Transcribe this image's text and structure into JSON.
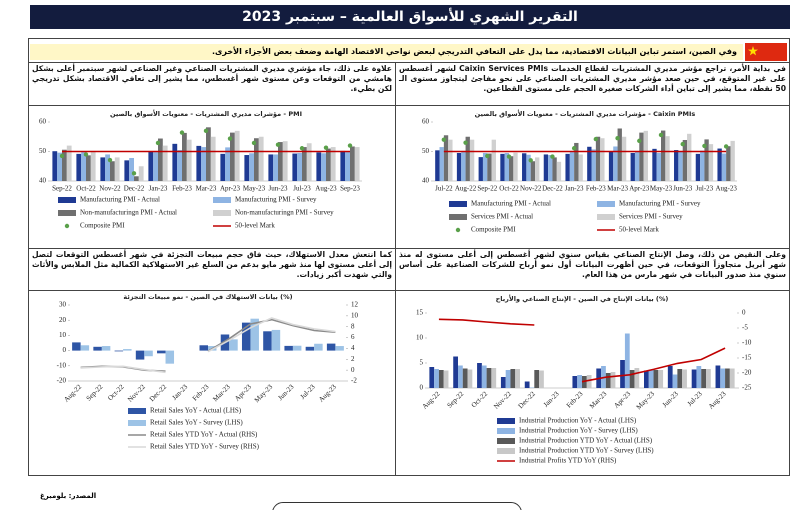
{
  "header": {
    "title": "التقرير الشهري للأسواق العالمية – سبتمبر 2023"
  },
  "intro": "وفي الصين، استمر تباين البيانات الاقتصادية، مما يدل على التعافي التدريجي لبعض نواحي الاقتصاد الهامة وضعف بعض الأجزاء الأخرى.",
  "paragraphs": [
    "في بداية الأمر، تراجع مؤشر مديري المشتريات لقطاع الخدمات Caixin Services PMIs لشهر أغسطس على غير المتوقع، في حين صعد مؤشر مديري المشتريات الصناعي على نحو مفاجئ ليتجاوز مستوى الـ 50 نقطة، مما يشير إلى تباين أداء الشركات صغيرة الحجم على مستوى القطاعين.",
    "علاوة على ذلك، جاء مؤشري مديري المشتريات الصناعي وغير الصناعي لشهر سبتمبر أعلى بشكل هامشي من التوقعات وعن مستوى شهر أغسطس، مما يشير إلى تعافي الاقتصاد بشكل تدريجي لكن بطيء.",
    "وعلى النقيض من ذلك، وصل الإنتاج الصناعي بقياس سنوي لشهر أغسطس إلى أعلى مستوى له منذ شهر أبريل متجاوزاً التوقعات، في حين أظهرت البيانات أول نمو أرباح للشركات الصناعية على أساس سنوي منذ صدور البيانات في شهر مارس من هذا العام.",
    "كما انتعش معدل الاستهلاك، حيث فاق حجم مبيعات التجزئة في شهر أغسطس التوقعات لتصل إلى أعلى مستوى لها منذ شهر مايو بدعم من السلع غير الاستهلاكية الكمالية مثل الملابس والأثاث والتي شهدت أكبر زيادات."
  ],
  "source": "المصدر: بلومبرغ",
  "chart_data": [
    {
      "type": "bar",
      "title": "مؤشرات مديري المشتريات - معنويات الأسواق بالصين - Caixin PMIs",
      "categories": [
        "Jul-22",
        "Aug-22",
        "Sep-22",
        "Oct-22",
        "Nov-22",
        "Dec-22",
        "Jan-23",
        "Feb-23",
        "Mar-23",
        "Apr-23",
        "May-23",
        "Jun-23",
        "Jul-23",
        "Aug-23"
      ],
      "ylim": [
        40,
        60
      ],
      "yticks": [
        40,
        50,
        60
      ],
      "grid": false,
      "series": [
        {
          "name": "Manufacturing PMI - Actual",
          "type": "bar",
          "color": "#1f3a93",
          "values": [
            50.4,
            49.5,
            48.1,
            49.2,
            49.4,
            49.0,
            49.2,
            51.6,
            50.0,
            49.5,
            50.9,
            50.5,
            49.2,
            51.0
          ]
        },
        {
          "name": "Manufacturing PMI - Survey",
          "type": "bar",
          "color": "#8eb4e3",
          "values": [
            51.5,
            50.2,
            49.5,
            49.5,
            48.9,
            48.8,
            49.8,
            50.7,
            51.7,
            50.0,
            49.5,
            50.0,
            50.3,
            49.3
          ]
        },
        {
          "name": "Services PMI - Actual",
          "type": "bar",
          "color": "#6f6f6f",
          "values": [
            55.5,
            55.0,
            49.3,
            48.4,
            46.7,
            48.0,
            52.9,
            55.0,
            57.8,
            56.4,
            57.1,
            53.9,
            54.1,
            51.8
          ]
        },
        {
          "name": "Services PMI - Survey",
          "type": "bar",
          "color": "#d0d0d0",
          "values": [
            54.0,
            54.0,
            54.0,
            49.6,
            48.0,
            46.5,
            49.0,
            54.5,
            55.0,
            57.0,
            55.2,
            56.0,
            52.5,
            53.6
          ]
        },
        {
          "name": "Composite PMI",
          "type": "scatter",
          "color": "#5aa04a",
          "values": [
            54.0,
            53.0,
            48.5,
            48.3,
            47.0,
            48.3,
            51.1,
            54.2,
            54.5,
            53.6,
            55.6,
            52.5,
            51.9,
            51.7
          ]
        },
        {
          "name": "50-level Mark",
          "type": "line",
          "color": "#c00000",
          "values": [
            50,
            50,
            50,
            50,
            50,
            50,
            50,
            50,
            50,
            50,
            50,
            50,
            50,
            50
          ]
        }
      ]
    },
    {
      "type": "bar",
      "title": "مؤشرات مديري المشتريات - معنويات الأسواق بالصين - PMI",
      "categories": [
        "Sep-22",
        "Oct-22",
        "Nov-22",
        "Dec-22",
        "Jan-23",
        "Feb-23",
        "Mar-23",
        "Apr-23",
        "May-23",
        "Jun-23",
        "Jul-23",
        "Aug-23",
        "Sep-23"
      ],
      "ylim": [
        40,
        60
      ],
      "yticks": [
        40,
        50,
        60
      ],
      "grid": false,
      "series": [
        {
          "name": "Manufacturing PMI - Actual",
          "type": "bar",
          "color": "#1f3a93",
          "values": [
            50.1,
            49.2,
            48.0,
            47.0,
            50.1,
            52.6,
            51.9,
            49.2,
            48.8,
            49.0,
            49.3,
            49.7,
            50.2
          ]
        },
        {
          "name": "Manufacturing PMI - Survey",
          "type": "bar",
          "color": "#8eb4e3",
          "values": [
            49.6,
            49.8,
            49.0,
            47.8,
            49.8,
            50.5,
            51.5,
            51.4,
            49.4,
            49.0,
            49.5,
            49.4,
            50.0
          ]
        },
        {
          "name": "Non-manufacturingn PMI - Actual",
          "type": "bar",
          "color": "#6f6f6f",
          "values": [
            50.6,
            48.7,
            46.7,
            41.6,
            54.4,
            56.3,
            58.2,
            56.4,
            54.5,
            53.2,
            51.5,
            51.0,
            51.7
          ]
        },
        {
          "name": "Non-manufacturingn PMI - Survey",
          "type": "bar",
          "color": "#d0d0d0",
          "values": [
            52.0,
            50.0,
            48.0,
            45.0,
            52.0,
            54.0,
            55.0,
            57.0,
            55.0,
            53.5,
            52.8,
            51.5,
            51.5
          ]
        },
        {
          "name": "Composite PMI",
          "type": "scatter",
          "color": "#5aa04a",
          "values": [
            48.5,
            49.0,
            47.1,
            42.6,
            52.9,
            56.4,
            57.0,
            54.4,
            52.9,
            52.3,
            51.1,
            51.3,
            52.0
          ]
        },
        {
          "name": "50-level Mark",
          "type": "line",
          "color": "#c00000",
          "values": [
            50,
            50,
            50,
            50,
            50,
            50,
            50,
            50,
            50,
            50,
            50,
            50,
            50
          ]
        }
      ]
    },
    {
      "type": "bar",
      "title": "بيانات الإنتاج في الصين - الإنتاج الصناعي والأرباح (%)",
      "categories": [
        "Aug-22",
        "Sep-22",
        "Oct-22",
        "Nov-22",
        "Dec-22",
        "Jan-23",
        "Feb-23",
        "Mar-23",
        "Apr-23",
        "May-23",
        "Jun-23",
        "Jul-23",
        "Aug-23"
      ],
      "ylim": [
        0,
        15
      ],
      "yticks": [
        0,
        5,
        10,
        15
      ],
      "y2lim": [
        -25,
        0
      ],
      "y2ticks": [
        -25,
        -20,
        -15,
        -10,
        -5,
        0
      ],
      "grid": false,
      "series": [
        {
          "name": "Industrial Production YoY - Actual (LHS)",
          "type": "bar",
          "color": "#1f3a93",
          "values": [
            4.2,
            6.3,
            5.0,
            2.2,
            1.3,
            null,
            2.4,
            3.9,
            5.6,
            3.5,
            4.4,
            3.7,
            4.5
          ]
        },
        {
          "name": "Industrial Production YoY - Survey (LHS)",
          "type": "bar",
          "color": "#8eb4e3",
          "values": [
            3.8,
            4.5,
            4.5,
            3.6,
            0.1,
            null,
            2.6,
            4.4,
            10.9,
            3.6,
            2.7,
            4.4,
            3.9
          ]
        },
        {
          "name": "Industrial Production YTD YoY - Actual (LHS)",
          "type": "bar",
          "color": "#595959",
          "values": [
            3.6,
            3.9,
            4.0,
            3.8,
            3.6,
            null,
            2.4,
            3.0,
            3.6,
            3.6,
            3.8,
            3.8,
            3.9
          ]
        },
        {
          "name": "Industrial Production YTD YoY - Survey (LHS)",
          "type": "bar",
          "color": "#c8c8c8",
          "values": [
            3.5,
            3.7,
            4.0,
            3.8,
            3.5,
            null,
            2.6,
            3.2,
            4.0,
            3.6,
            3.7,
            3.8,
            3.9
          ]
        },
        {
          "name": "Industrial Profits YTD YoY (RHS)",
          "type": "line",
          "axis": "y2",
          "color": "#c00000",
          "values": [
            -2.1,
            -2.3,
            -3.0,
            -3.6,
            -4.0,
            null,
            -22.9,
            -21.4,
            -20.6,
            -18.8,
            -16.8,
            -15.5,
            -11.7
          ]
        }
      ]
    },
    {
      "type": "bar",
      "title": "بيانات الاستهلاك في الصين - نمو مبيعات التجزئة (%)",
      "categories": [
        "Aug-22",
        "Sep-22",
        "Oct-22",
        "Nov-22",
        "Dec-22",
        "Jan-23",
        "Feb-23",
        "Mar-23",
        "Apr-23",
        "May-23",
        "Jun-23",
        "Jul-23",
        "Aug-23"
      ],
      "ylim": [
        -20,
        30
      ],
      "yticks": [
        -20,
        -10,
        0,
        10,
        20,
        30
      ],
      "y2lim": [
        -2,
        12
      ],
      "y2ticks": [
        -2,
        0,
        2,
        4,
        6,
        8,
        10,
        12
      ],
      "grid": false,
      "series": [
        {
          "name": "Retail Sales YoY - Actual (LHS)",
          "type": "bar",
          "color": "#2e55a5",
          "values": [
            5.4,
            2.5,
            -0.5,
            -5.9,
            -1.8,
            null,
            3.5,
            10.6,
            18.4,
            12.7,
            3.1,
            2.5,
            4.6
          ]
        },
        {
          "name": "Retail Sales YoY - Survey (LHS)",
          "type": "bar",
          "color": "#9dc3e6",
          "values": [
            3.5,
            3.0,
            1.0,
            -3.7,
            -8.6,
            null,
            3.0,
            7.4,
            21.0,
            13.6,
            3.2,
            4.5,
            3.0
          ]
        },
        {
          "name": "Retail Sales YTD YoY - Actual (RHS)",
          "type": "line",
          "axis": "y2",
          "color": "#8a8a8a",
          "values": [
            0.5,
            0.7,
            0.6,
            0.0,
            -0.2,
            null,
            3.5,
            5.8,
            8.5,
            9.3,
            8.2,
            7.3,
            7.0
          ]
        },
        {
          "name": "Retail Sales YTD YoY - Survey (RHS)",
          "type": "line",
          "axis": "y2",
          "color": "#d9d9d9",
          "values": [
            0.4,
            0.6,
            0.7,
            0.1,
            -0.4,
            null,
            3.4,
            5.5,
            7.8,
            9.6,
            8.4,
            7.6,
            7.1
          ]
        }
      ]
    }
  ]
}
